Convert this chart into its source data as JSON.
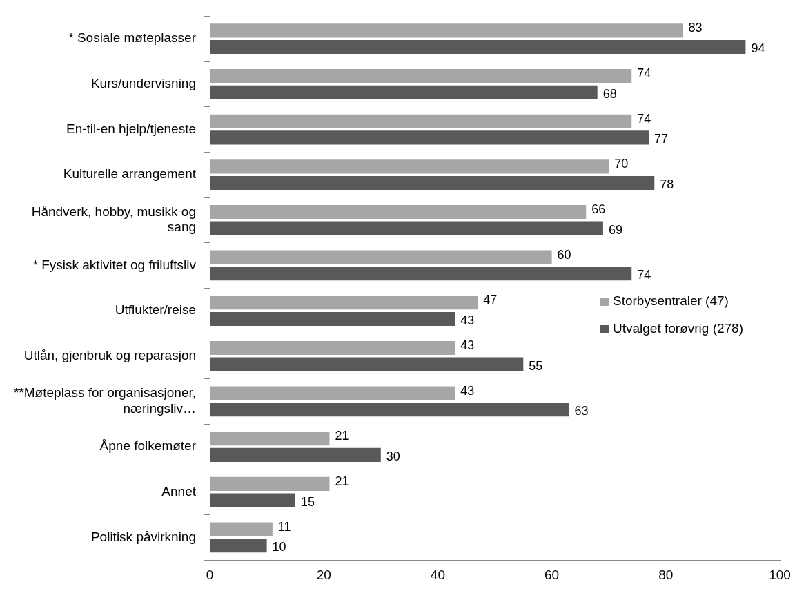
{
  "chart_data": {
    "type": "bar",
    "orientation": "horizontal",
    "categories": [
      "* Sosiale møteplasser",
      "Kurs/undervisning",
      "En-til-en hjelp/tjeneste",
      "Kulturelle arrangement",
      "Håndverk, hobby, musikk og sang",
      "* Fysisk aktivitet og friluftsliv",
      "Utflukter/reise",
      "Utlån, gjenbruk og reparasjon",
      "**Møteplass for organisasjoner, næringsliv…",
      "Åpne folkemøter",
      "Annet",
      "Politisk påvirkning"
    ],
    "series": [
      {
        "name": "Storbysentraler (47)",
        "color": "#a6a6a6",
        "values": [
          83,
          74,
          74,
          70,
          66,
          60,
          47,
          43,
          43,
          21,
          21,
          11
        ]
      },
      {
        "name": "Utvalget forøvrig (278)",
        "color": "#595959",
        "values": [
          94,
          68,
          77,
          78,
          69,
          74,
          43,
          55,
          63,
          30,
          15,
          10
        ]
      }
    ],
    "xlim": [
      0,
      100
    ],
    "xticks": [
      0,
      20,
      40,
      60,
      80,
      100
    ],
    "grid": false,
    "legend": "right",
    "data_labels": true
  }
}
